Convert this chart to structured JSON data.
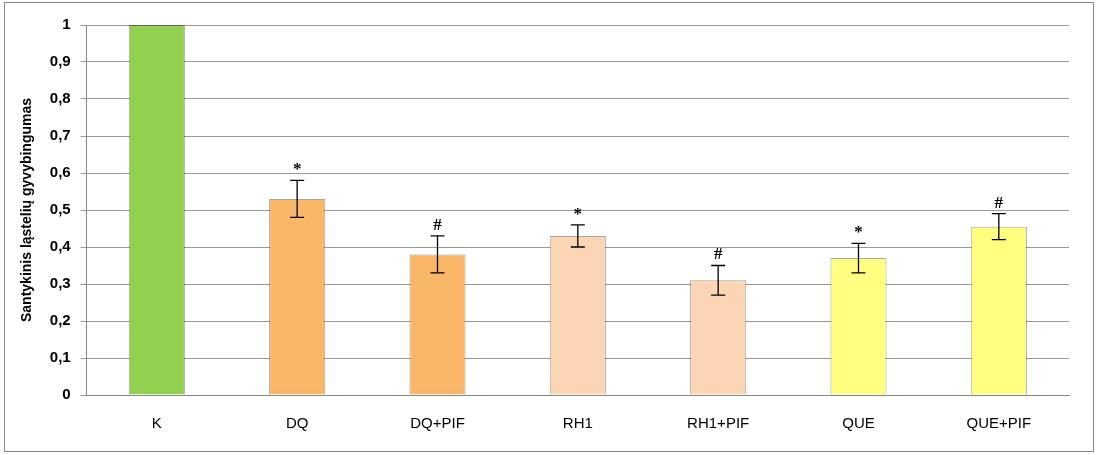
{
  "chart_data": {
    "type": "bar",
    "ylabel": "Santykinis ląstelių gyvybingumas",
    "categories": [
      "K",
      "DQ",
      "DQ+PIF",
      "RH1",
      "RH1+PIF",
      "QUE",
      "QUE+PIF"
    ],
    "values": [
      1,
      0.53,
      0.38,
      0.43,
      0.31,
      0.37,
      0.455
    ],
    "errors": [
      null,
      0.05,
      0.05,
      0.03,
      0.04,
      0.04,
      0.035
    ],
    "colors": [
      "#92d050",
      "#fab768",
      "#fab768",
      "#fcd5b5",
      "#fcd5b5",
      "#ffff80",
      "#ffff80"
    ],
    "ylim": [
      0,
      1
    ],
    "yticks": [
      0,
      {
        "value": 0.1,
        "label": "0,1"
      },
      {
        "value": 0.2,
        "label": "0,2"
      },
      {
        "value": 0.3,
        "label": "0,3"
      },
      {
        "value": 0.4,
        "label": "0,4"
      },
      {
        "value": 0.5,
        "label": "0,5"
      },
      {
        "value": 0.6,
        "label": "0,6"
      },
      {
        "value": 0.7,
        "label": "0,7"
      },
      {
        "value": 0.8,
        "label": "0,8"
      },
      {
        "value": 0.9,
        "label": "0,9"
      },
      1
    ],
    "grid": "y",
    "annotations": [
      {
        "text": "*",
        "x": "DQ",
        "y": 0.58
      },
      {
        "text": "#",
        "x": "DQ+PIF",
        "y": 0.43
      },
      {
        "text": "*",
        "x": "RH1",
        "y": 0.46
      },
      {
        "text": "#",
        "x": "RH1+PIF",
        "y": 0.35
      },
      {
        "text": "*",
        "x": "QUE",
        "y": 0.41
      },
      {
        "text": "#",
        "x": "QUE+PIF",
        "y": 0.49
      }
    ]
  }
}
